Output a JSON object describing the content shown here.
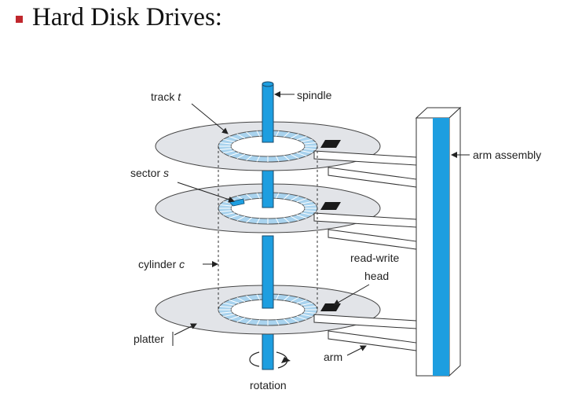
{
  "title": "Hard Disk Drives:",
  "colors": {
    "bullet": "#c0272d",
    "spindle": "#1d9ee0",
    "track": "#a9d3ee",
    "highlight_sector": "#1d9ee0",
    "platter": "#e2e4e8",
    "arm": "#ffffff",
    "head": "#1a1a1a"
  },
  "labels": {
    "track": "track",
    "track_var": "t",
    "spindle": "spindle",
    "arm_assembly": "arm assembly",
    "sector": "sector",
    "sector_var": "s",
    "cylinder": "cylinder",
    "cylinder_var": "c",
    "read_write_line1": "read-write",
    "read_write_line2": "head",
    "platter": "platter",
    "arm": "arm",
    "rotation": "rotation"
  }
}
